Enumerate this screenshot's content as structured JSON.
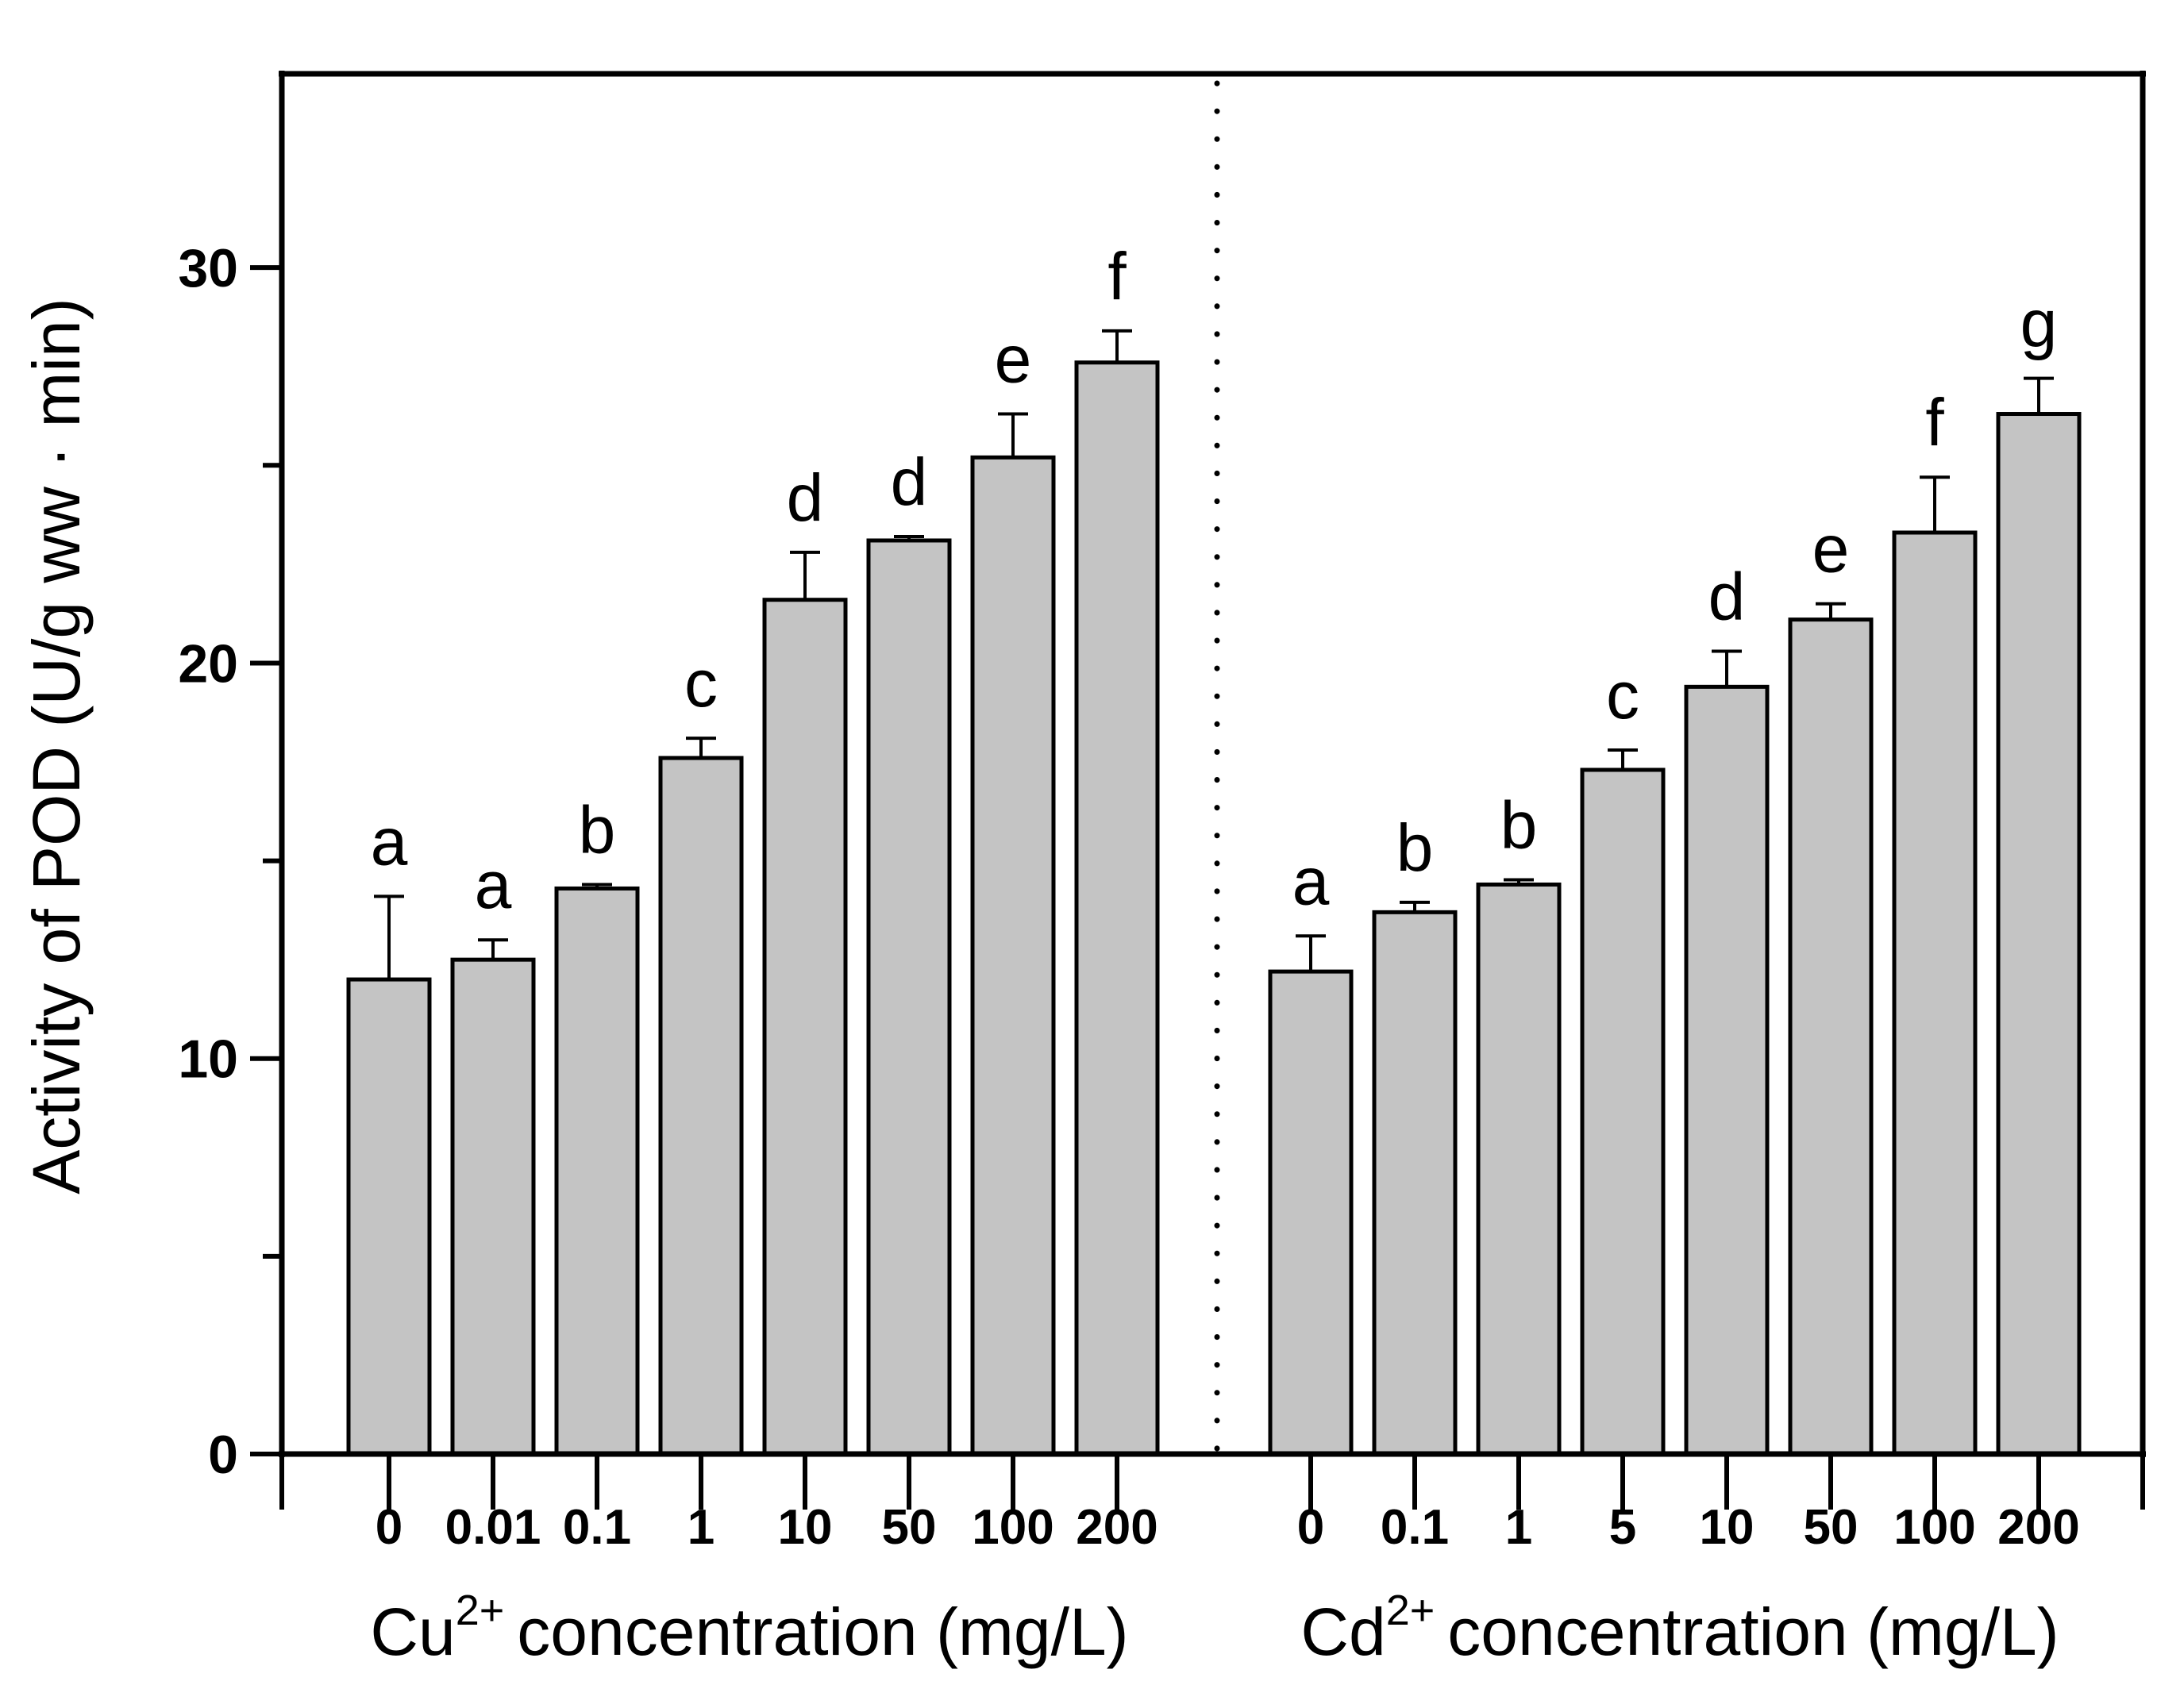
{
  "chart_data": {
    "type": "bar",
    "title": "",
    "ylabel": "Activity of POD (U/g ww · min)",
    "ylim": [
      0,
      34.9
    ],
    "grid": false,
    "legend": "none",
    "colors": {
      "bar_fill": "#c4c4c4",
      "bar_stroke": "#000000",
      "axis": "#000000",
      "background": "#ffffff"
    },
    "y_axis": {
      "major_ticks": [
        0,
        10,
        20,
        30
      ],
      "major_tick_labels": [
        "0",
        "10",
        "20",
        "30"
      ],
      "minor_ticks": [
        5,
        15,
        25
      ]
    },
    "divider_style": "dotted-vertical-line",
    "panels": [
      {
        "name": "Cu",
        "xlabel_prefix": "Cu",
        "xlabel_sup": "2+",
        "xlabel_suffix": "concentration (mg/L)",
        "categories": [
          "0",
          "0.01",
          "0.1",
          "1",
          "10",
          "50",
          "100",
          "200"
        ],
        "values": [
          12.0,
          12.5,
          14.3,
          17.6,
          21.6,
          23.1,
          25.2,
          27.6
        ],
        "errors_plus": [
          2.1,
          0.5,
          0.1,
          0.5,
          1.2,
          0.1,
          1.1,
          0.8
        ],
        "sig_letters": [
          "a",
          "a",
          "b",
          "c",
          "d",
          "d",
          "e",
          "f"
        ]
      },
      {
        "name": "Cd",
        "xlabel_prefix": "Cd",
        "xlabel_sup": "2+",
        "xlabel_suffix": "concentration (mg/L)",
        "categories": [
          "0",
          "0.1",
          "1",
          "5",
          "10",
          "50",
          "100",
          "200"
        ],
        "values": [
          12.2,
          13.7,
          14.4,
          17.3,
          19.4,
          21.1,
          23.3,
          26.3
        ],
        "errors_plus": [
          0.9,
          0.25,
          0.12,
          0.5,
          0.9,
          0.4,
          1.4,
          0.9
        ],
        "sig_letters": [
          "a",
          "b",
          "b",
          "c",
          "d",
          "e",
          "f",
          "g"
        ]
      }
    ]
  }
}
